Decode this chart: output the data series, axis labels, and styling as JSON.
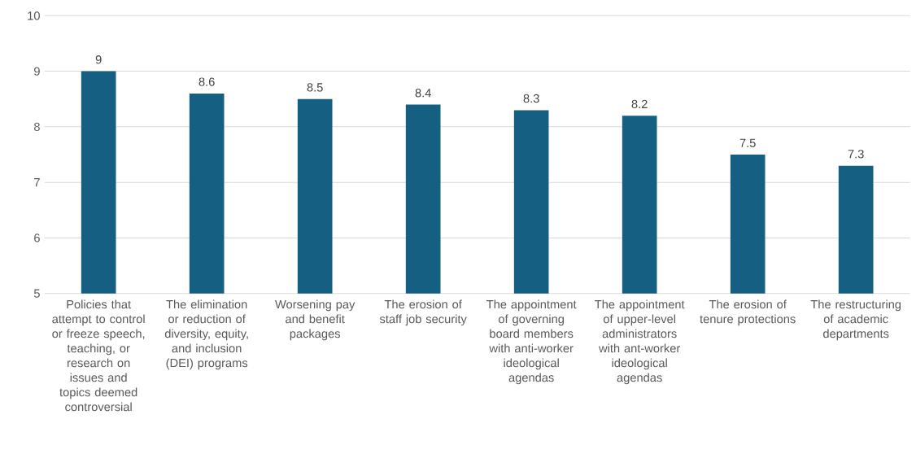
{
  "chart_data": {
    "type": "bar",
    "categories": [
      "Policies that attempt to control or freeze speech, teaching, or research on issues and topics deemed controversial",
      "The elimination or reduction of diversity, equity, and inclusion (DEI) programs",
      "Worsening pay and benefit packages",
      "The erosion of staff job security",
      "The appointment of governing board members with anti-worker ideological agendas",
      "The appointment of upper-level administrators with ant-worker ideological agendas",
      "The erosion of tenure protections",
      "The restructuring of academic departments"
    ],
    "values": [
      9,
      8.6,
      8.5,
      8.4,
      8.3,
      8.2,
      7.5,
      7.3
    ],
    "color": "#156082",
    "ylim": [
      5,
      10
    ],
    "yticks": [
      5,
      6,
      7,
      8,
      9,
      10
    ],
    "grid": "y",
    "data_labels": true
  }
}
